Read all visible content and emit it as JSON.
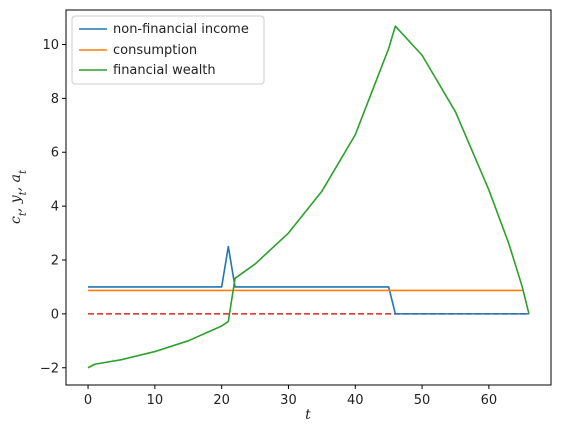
{
  "chart_data": {
    "type": "line",
    "title": "",
    "xlabel": "t",
    "ylabel": "c_t, y_t, a_t",
    "xlim": [
      -3.3,
      69.3
    ],
    "ylim": [
      -2.64,
      11.28
    ],
    "xticks": [
      0,
      10,
      20,
      30,
      40,
      50,
      60
    ],
    "yticks": [
      -2,
      0,
      2,
      4,
      6,
      8,
      10
    ],
    "grid": false,
    "legend_position": "top-left",
    "series": [
      {
        "name": "non-financial income",
        "color": "#1f77b4",
        "points": [
          [
            0,
            1
          ],
          [
            20,
            1
          ],
          [
            21,
            2.5
          ],
          [
            22,
            1
          ],
          [
            45,
            1
          ],
          [
            46,
            0
          ],
          [
            66,
            0
          ]
        ]
      },
      {
        "name": "consumption",
        "color": "#ff7f0e",
        "points": [
          [
            0,
            0.87
          ],
          [
            65,
            0.87
          ]
        ]
      },
      {
        "name": "financial wealth",
        "color": "#2ca02c",
        "points": [
          [
            0,
            -2.0
          ],
          [
            1,
            -1.87
          ],
          [
            5,
            -1.7
          ],
          [
            10,
            -1.4
          ],
          [
            15,
            -1.0
          ],
          [
            20,
            -0.45
          ],
          [
            21,
            -0.28
          ],
          [
            22,
            1.32
          ],
          [
            25,
            1.85
          ],
          [
            30,
            3.0
          ],
          [
            35,
            4.55
          ],
          [
            40,
            6.65
          ],
          [
            45,
            9.85
          ],
          [
            46,
            10.68
          ],
          [
            50,
            9.6
          ],
          [
            55,
            7.5
          ],
          [
            60,
            4.6
          ],
          [
            63,
            2.6
          ],
          [
            65,
            1.0
          ],
          [
            66,
            0.0
          ]
        ]
      },
      {
        "name": "",
        "color": "#d62728",
        "dashed": true,
        "points": [
          [
            0,
            0
          ],
          [
            66,
            0
          ]
        ]
      }
    ]
  }
}
